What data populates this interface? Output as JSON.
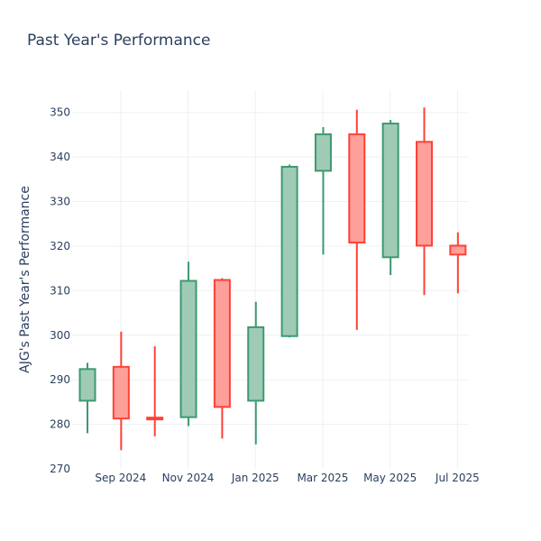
{
  "chart_data": {
    "type": "candlestick",
    "title": "Past Year's Performance",
    "xlabel": "",
    "ylabel": "AJG's Past Year's Performance",
    "ylim": [
      270,
      355
    ],
    "y_ticks": [
      270,
      280,
      290,
      300,
      310,
      320,
      330,
      340,
      350
    ],
    "x_ticks": [
      "Sep 2024",
      "Nov 2024",
      "Jan 2025",
      "Mar 2025",
      "May 2025",
      "Jul 2025"
    ],
    "grid": true,
    "colors": {
      "increasing_line": "#3d9970",
      "increasing_fill": "#9fcbb6",
      "decreasing_line": "#ff4136",
      "decreasing_fill": "#ff9f9a",
      "grid": "#eef0f4",
      "text": "#2a3f5f"
    },
    "candles": [
      {
        "open": 285.3,
        "high": 293.8,
        "low": 278.0,
        "close": 292.4
      },
      {
        "open": 292.9,
        "high": 300.8,
        "low": 274.2,
        "close": 281.3
      },
      {
        "open": 281.5,
        "high": 297.5,
        "low": 277.3,
        "close": 281.1
      },
      {
        "open": 281.6,
        "high": 316.5,
        "low": 279.6,
        "close": 312.2
      },
      {
        "open": 312.4,
        "high": 312.8,
        "low": 276.8,
        "close": 283.9
      },
      {
        "open": 285.3,
        "high": 307.5,
        "low": 275.5,
        "close": 301.8
      },
      {
        "open": 299.8,
        "high": 338.3,
        "low": 299.5,
        "close": 337.8
      },
      {
        "open": 336.9,
        "high": 346.7,
        "low": 318.1,
        "close": 345.1
      },
      {
        "open": 345.1,
        "high": 350.6,
        "low": 301.2,
        "close": 320.8
      },
      {
        "open": 317.5,
        "high": 348.3,
        "low": 313.5,
        "close": 347.5
      },
      {
        "open": 343.4,
        "high": 351.1,
        "low": 309.0,
        "close": 320.1
      },
      {
        "open": 320.1,
        "high": 323.1,
        "low": 309.4,
        "close": 318.1
      }
    ]
  }
}
